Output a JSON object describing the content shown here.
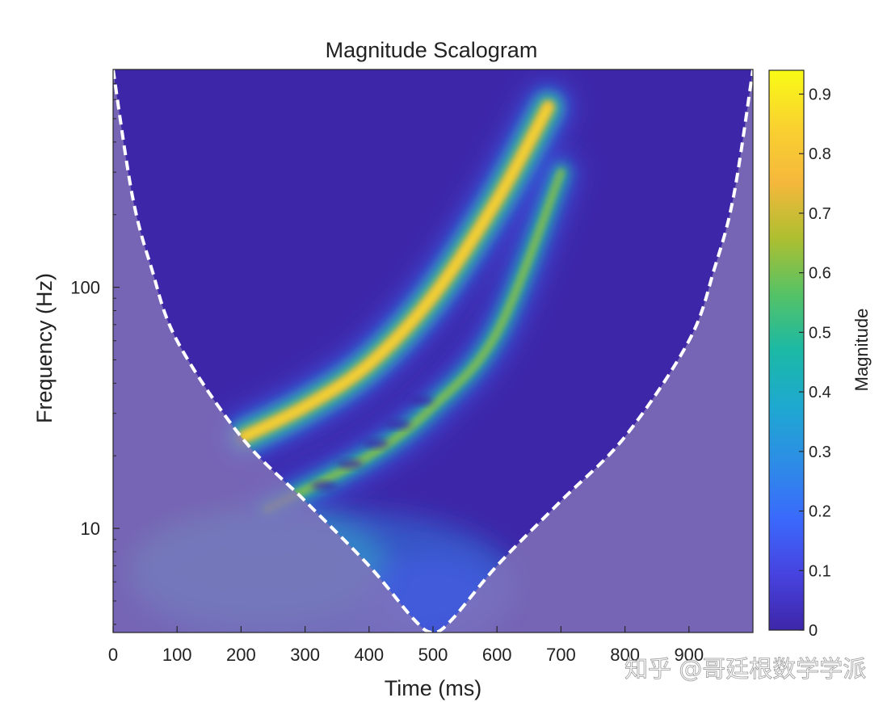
{
  "chart_data": {
    "type": "heatmap",
    "title": "Magnitude Scalogram",
    "xlabel": "Time (ms)",
    "ylabel": "Frequency (Hz)",
    "xlim": [
      0,
      1000
    ],
    "x_ticks": [
      0,
      100,
      200,
      300,
      400,
      500,
      600,
      700,
      800,
      900
    ],
    "y_scale": "log",
    "ylim": [
      3.7,
      800
    ],
    "y_ticks": [
      10,
      100
    ],
    "colorbar": {
      "label": "Magnitude",
      "range": [
        0,
        0.94
      ],
      "ticks": [
        0,
        0.1,
        0.2,
        0.3,
        0.4,
        0.5,
        0.6,
        0.7,
        0.8,
        0.9
      ],
      "colormap": "parula"
    },
    "features": [
      {
        "name": "primary-chirp-ridge",
        "points": [
          [
            205,
            24
          ],
          [
            300,
            32
          ],
          [
            400,
            48
          ],
          [
            500,
            92
          ],
          [
            600,
            230
          ],
          [
            680,
            560
          ]
        ],
        "peak_magnitude": 0.9
      },
      {
        "name": "secondary-chirp-ridge",
        "points": [
          [
            240,
            12
          ],
          [
            400,
            20
          ],
          [
            500,
            32
          ],
          [
            600,
            65
          ],
          [
            700,
            300
          ]
        ],
        "peak_magnitude": 0.65
      },
      {
        "name": "cone-of-influence",
        "style": "dashed white",
        "points": [
          [
            0,
            800
          ],
          [
            30,
            240
          ],
          [
            60,
            120
          ],
          [
            100,
            60
          ],
          [
            200,
            24
          ],
          [
            300,
            13
          ],
          [
            400,
            7
          ],
          [
            470,
            4.2
          ],
          [
            500,
            3.7
          ],
          [
            530,
            4.2
          ],
          [
            600,
            7
          ],
          [
            700,
            13
          ],
          [
            800,
            24
          ],
          [
            900,
            60
          ],
          [
            940,
            120
          ],
          [
            970,
            240
          ],
          [
            1000,
            800
          ]
        ]
      }
    ]
  },
  "watermark": "知乎 @哥廷根数学学派",
  "colors": {
    "background_low": "#3d26a8",
    "coi_shade": "#8474b8",
    "coi_line": "#ffffff",
    "axis": "#262626"
  }
}
